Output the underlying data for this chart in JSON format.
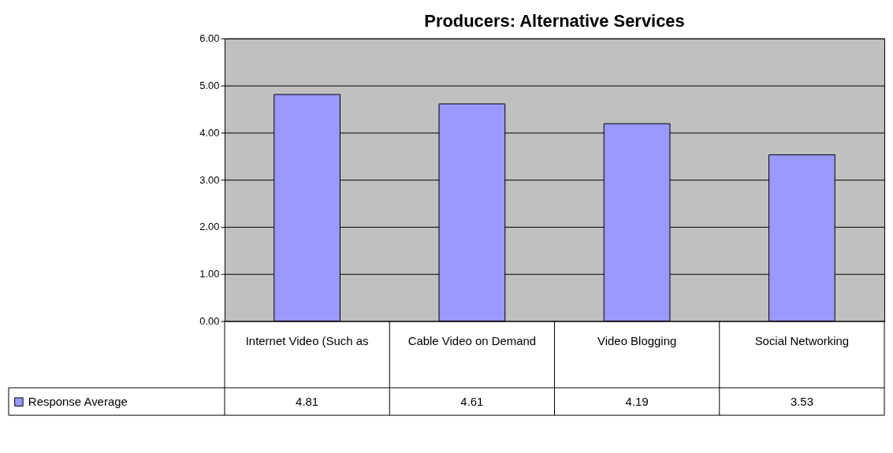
{
  "chart_data": {
    "type": "bar",
    "title": "Producers: Alternative Services",
    "categories": [
      "Internet Video (Such as",
      "Cable Video on Demand",
      "Video Blogging",
      "Social Networking"
    ],
    "series": [
      {
        "name": "Response Average",
        "color": "#9999ff",
        "values": [
          4.81,
          4.61,
          4.19,
          3.53
        ]
      }
    ],
    "ylim": [
      0,
      6
    ],
    "yticks": [
      {
        "value": 0,
        "label": "0.00"
      },
      {
        "value": 1,
        "label": "1.00"
      },
      {
        "value": 2,
        "label": "2.00"
      },
      {
        "value": 3,
        "label": "3.00"
      },
      {
        "value": 4,
        "label": "4.00"
      },
      {
        "value": 5,
        "label": "5.00"
      },
      {
        "value": 6,
        "label": "6.00"
      }
    ],
    "grid": "y",
    "data_labels": true,
    "legend": "bottom left"
  }
}
